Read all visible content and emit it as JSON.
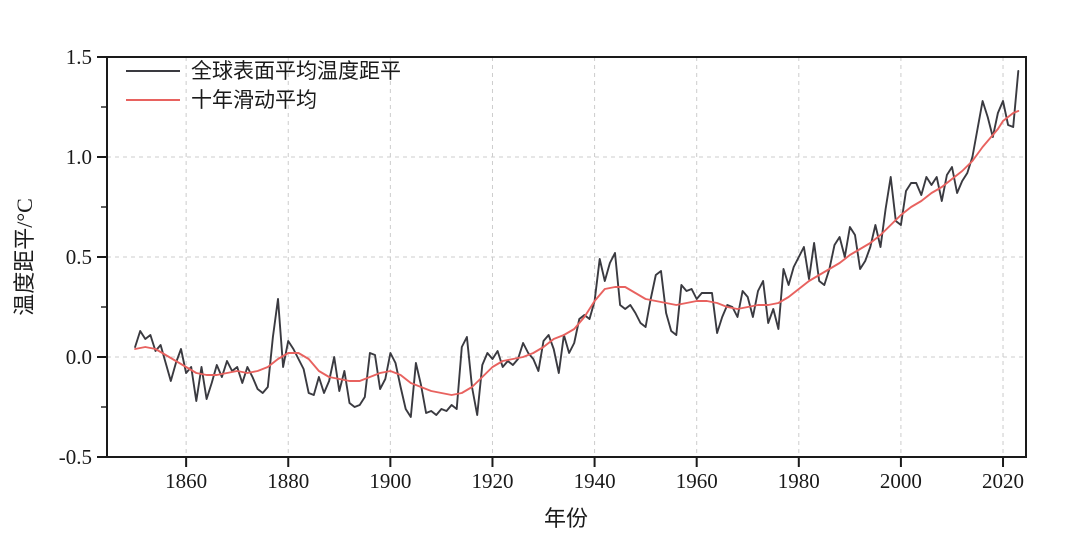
{
  "figure": {
    "xlabel": "年份",
    "ylabel": "温度距平/°C",
    "background": "#ffffff",
    "border_color": "#1a1a1a",
    "grid_color": "#cccccc",
    "legend": [
      {
        "label": "全球表面平均温度距平",
        "color": "#3a3a40"
      },
      {
        "label": "十年滑动平均",
        "color": "#e8625f"
      }
    ]
  },
  "chart_data": {
    "type": "line",
    "title": "",
    "xlabel": "年份",
    "ylabel": "温度距平/°C",
    "xlim": [
      1844.5,
      2024.5
    ],
    "ylim": [
      -0.5,
      1.5
    ],
    "xticks": [
      1860,
      1880,
      1900,
      1920,
      1940,
      1960,
      1980,
      2000,
      2020
    ],
    "yticks": [
      -0.5,
      0.0,
      0.5,
      1.0,
      1.5
    ],
    "y_minor_ticks": [
      -0.25,
      0.25,
      0.75,
      1.25
    ],
    "grid_x": [
      1860,
      1880,
      1900,
      1920,
      1940,
      1960,
      1980,
      2000,
      2020
    ],
    "grid_y": [
      0.0,
      0.5,
      1.0
    ],
    "grid_style": "dashed",
    "legend_position": "top-left",
    "x_start": 1850,
    "x_step": 1,
    "series": [
      {
        "name": "全球表面平均温度距平",
        "color": "#3a3a40",
        "width": 1.9,
        "values": [
          0.05,
          0.13,
          0.09,
          0.11,
          0.03,
          0.06,
          -0.03,
          -0.12,
          -0.03,
          0.04,
          -0.08,
          -0.05,
          -0.22,
          -0.05,
          -0.21,
          -0.13,
          -0.04,
          -0.1,
          -0.02,
          -0.07,
          -0.05,
          -0.13,
          -0.05,
          -0.1,
          -0.16,
          -0.18,
          -0.15,
          0.1,
          0.29,
          -0.05,
          0.08,
          0.04,
          -0.01,
          -0.06,
          -0.18,
          -0.19,
          -0.1,
          -0.18,
          -0.12,
          0.0,
          -0.17,
          -0.07,
          -0.23,
          -0.25,
          -0.24,
          -0.2,
          0.02,
          0.01,
          -0.16,
          -0.11,
          0.02,
          -0.03,
          -0.15,
          -0.26,
          -0.3,
          -0.03,
          -0.14,
          -0.28,
          -0.27,
          -0.29,
          -0.26,
          -0.27,
          -0.24,
          -0.26,
          0.05,
          0.1,
          -0.15,
          -0.29,
          -0.04,
          0.02,
          -0.01,
          0.03,
          -0.05,
          -0.02,
          -0.04,
          -0.01,
          0.07,
          0.02,
          -0.01,
          -0.07,
          0.08,
          0.11,
          0.04,
          -0.08,
          0.11,
          0.02,
          0.07,
          0.19,
          0.21,
          0.19,
          0.28,
          0.49,
          0.38,
          0.47,
          0.52,
          0.26,
          0.24,
          0.26,
          0.22,
          0.17,
          0.15,
          0.29,
          0.41,
          0.43,
          0.22,
          0.13,
          0.11,
          0.36,
          0.33,
          0.34,
          0.29,
          0.32,
          0.32,
          0.32,
          0.12,
          0.2,
          0.26,
          0.25,
          0.2,
          0.33,
          0.3,
          0.2,
          0.33,
          0.38,
          0.17,
          0.24,
          0.14,
          0.44,
          0.36,
          0.45,
          0.5,
          0.55,
          0.39,
          0.57,
          0.38,
          0.36,
          0.44,
          0.56,
          0.6,
          0.5,
          0.65,
          0.61,
          0.44,
          0.48,
          0.55,
          0.66,
          0.55,
          0.74,
          0.9,
          0.68,
          0.66,
          0.83,
          0.87,
          0.87,
          0.81,
          0.9,
          0.86,
          0.9,
          0.78,
          0.91,
          0.95,
          0.82,
          0.88,
          0.92,
          1.0,
          1.14,
          1.28,
          1.2,
          1.1,
          1.22,
          1.28,
          1.16,
          1.15,
          1.43
        ]
      },
      {
        "name": "十年滑动平均",
        "color": "#e8625f",
        "width": 1.9,
        "values": [
          0.04,
          0.045,
          0.05,
          0.045,
          0.04,
          0.025,
          0.01,
          -0.005,
          -0.02,
          -0.035,
          -0.05,
          -0.065,
          -0.08,
          -0.085,
          -0.09,
          -0.09,
          -0.09,
          -0.085,
          -0.08,
          -0.075,
          -0.07,
          -0.075,
          -0.08,
          -0.075,
          -0.07,
          -0.06,
          -0.05,
          -0.03,
          -0.01,
          0.005,
          0.02,
          0.02,
          0.02,
          0.005,
          -0.01,
          -0.04,
          -0.07,
          -0.085,
          -0.1,
          -0.105,
          -0.11,
          -0.115,
          -0.12,
          -0.12,
          -0.12,
          -0.11,
          -0.1,
          -0.09,
          -0.08,
          -0.075,
          -0.07,
          -0.08,
          -0.09,
          -0.11,
          -0.13,
          -0.14,
          -0.15,
          -0.16,
          -0.17,
          -0.175,
          -0.18,
          -0.185,
          -0.19,
          -0.185,
          -0.18,
          -0.165,
          -0.15,
          -0.125,
          -0.1,
          -0.075,
          -0.05,
          -0.035,
          -0.02,
          -0.015,
          -0.01,
          -0.005,
          0.0,
          0.01,
          0.02,
          0.035,
          0.05,
          0.07,
          0.09,
          0.1,
          0.11,
          0.125,
          0.14,
          0.17,
          0.2,
          0.24,
          0.28,
          0.31,
          0.34,
          0.345,
          0.35,
          0.35,
          0.35,
          0.335,
          0.32,
          0.305,
          0.29,
          0.285,
          0.28,
          0.275,
          0.27,
          0.265,
          0.26,
          0.265,
          0.27,
          0.275,
          0.28,
          0.28,
          0.28,
          0.275,
          0.27,
          0.26,
          0.25,
          0.245,
          0.24,
          0.245,
          0.25,
          0.255,
          0.26,
          0.26,
          0.26,
          0.265,
          0.27,
          0.285,
          0.3,
          0.32,
          0.34,
          0.36,
          0.38,
          0.395,
          0.41,
          0.425,
          0.44,
          0.455,
          0.47,
          0.49,
          0.51,
          0.525,
          0.54,
          0.555,
          0.57,
          0.59,
          0.61,
          0.635,
          0.66,
          0.685,
          0.71,
          0.73,
          0.75,
          0.765,
          0.78,
          0.8,
          0.82,
          0.835,
          0.85,
          0.87,
          0.89,
          0.91,
          0.93,
          0.955,
          0.98,
          1.015,
          1.05,
          1.08,
          1.11,
          1.14,
          1.18,
          1.2,
          1.22,
          1.23
        ]
      }
    ]
  }
}
